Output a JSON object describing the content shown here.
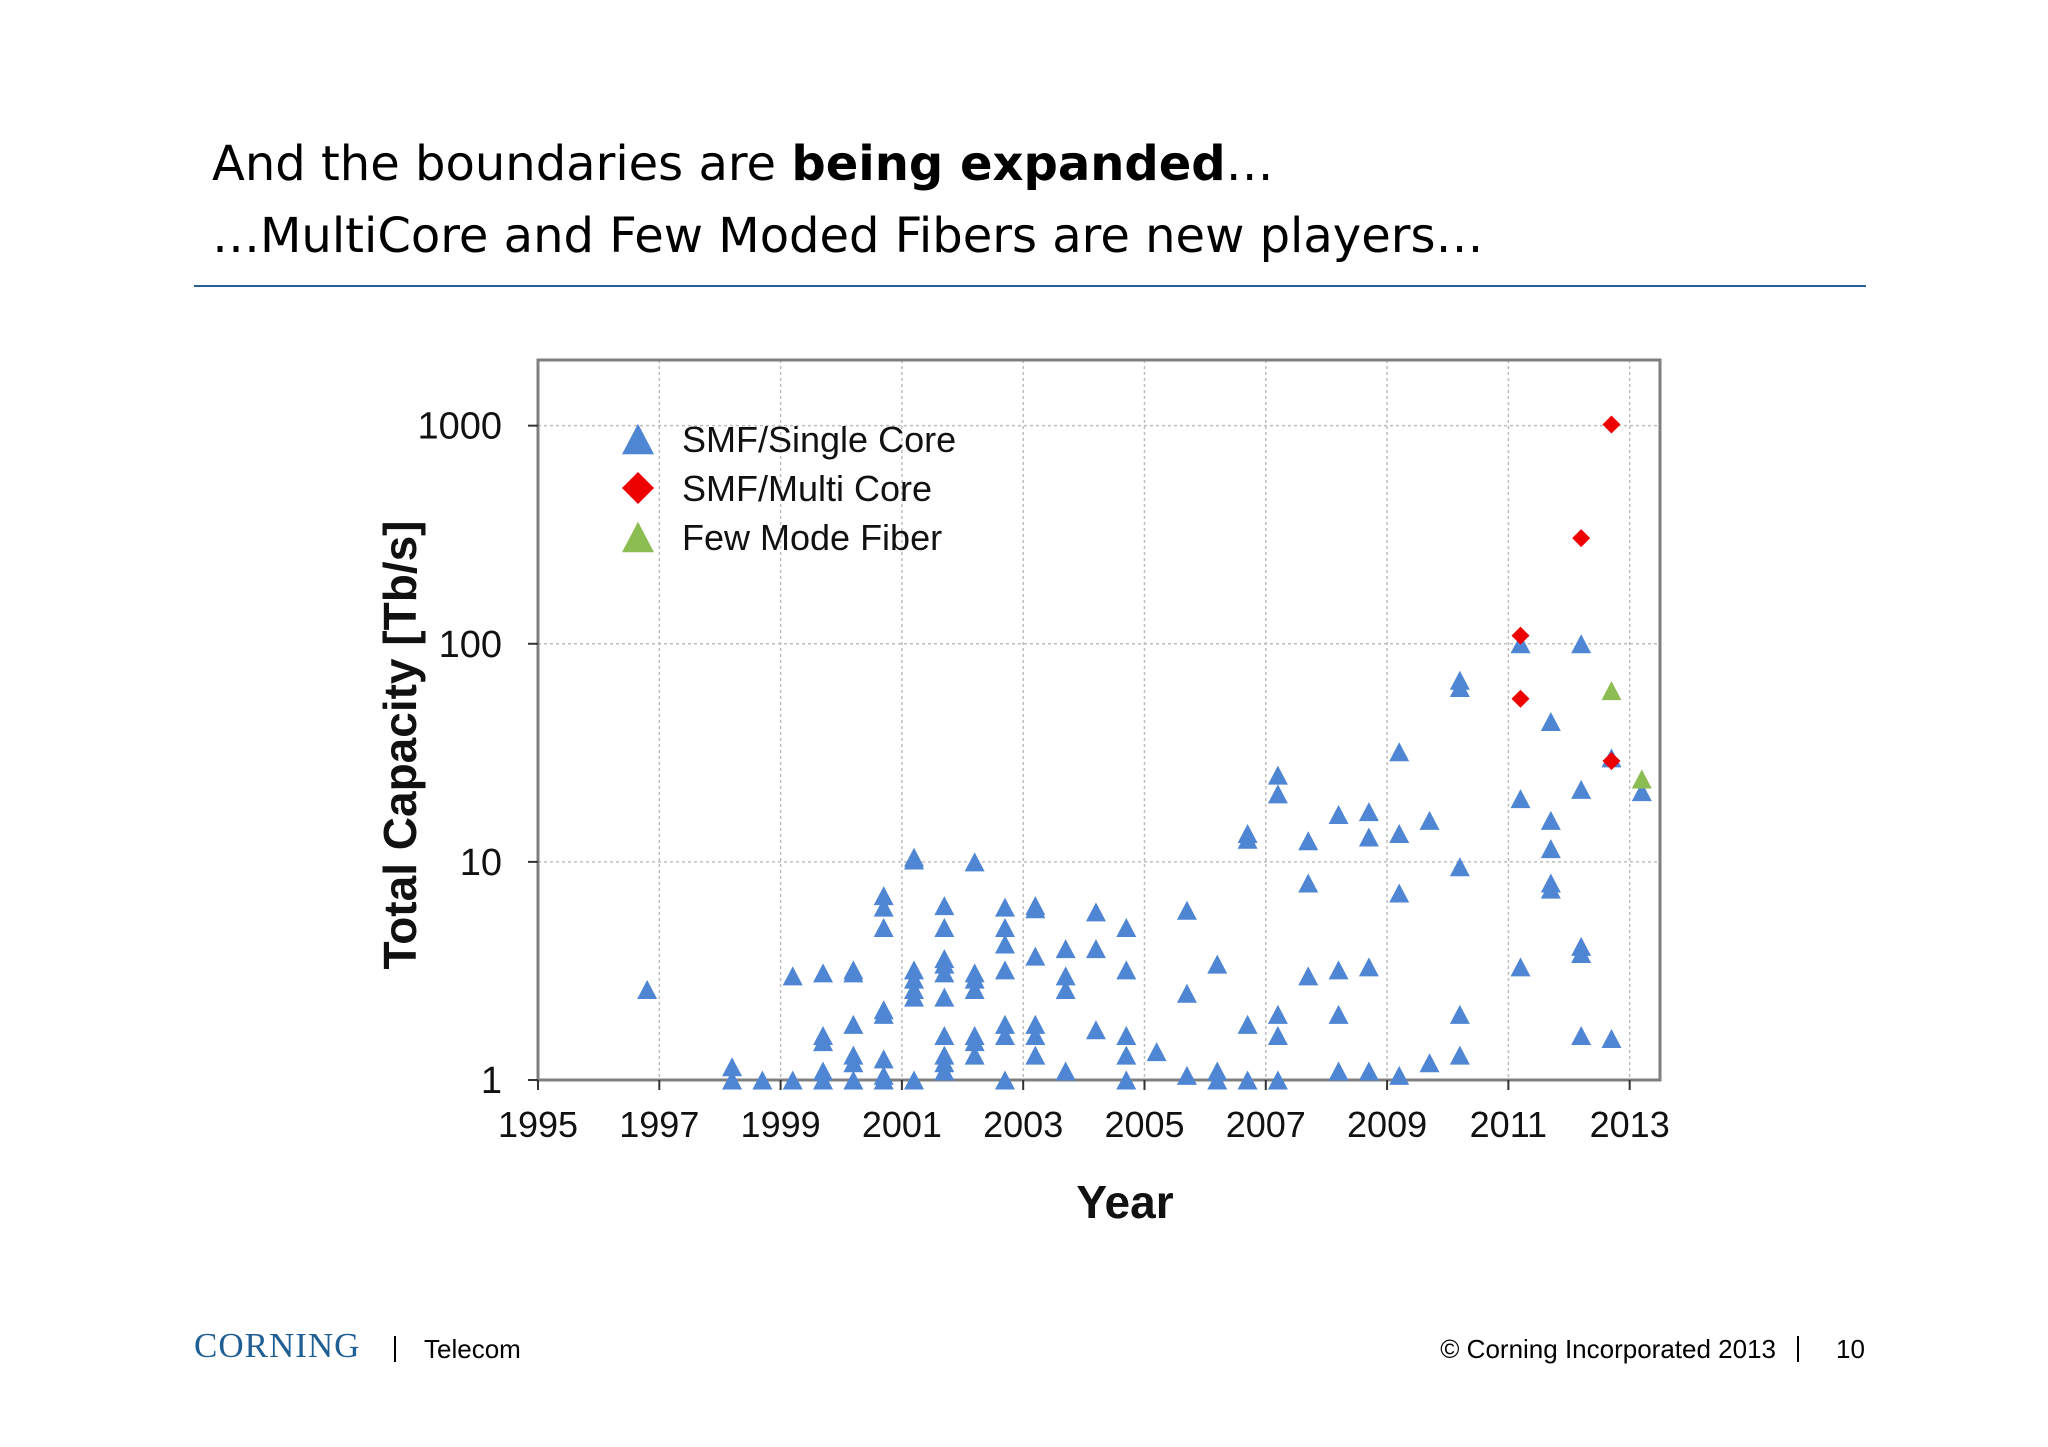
{
  "slide": {
    "title_line1_prefix": "And the boundaries are ",
    "title_line1_bold": "being expanded",
    "title_line1_suffix": "…",
    "title_line2": "…MultiCore and Few Moded Fibers are new players…",
    "rule_color": "#2a5f95"
  },
  "footer": {
    "logo": "CORNING",
    "unit": "Telecom",
    "copyright": "© Corning Incorporated 2013",
    "page_number": "10"
  },
  "chart_data": {
    "type": "scatter",
    "title": "",
    "xlabel": "Year",
    "ylabel": "Total Capacity [Tb/s]",
    "xlim": [
      1995,
      2013.5
    ],
    "ylim": [
      1,
      2000
    ],
    "yscale": "log",
    "x_ticks": [
      "1995",
      "1997",
      "1999",
      "2001",
      "2003",
      "2005",
      "2007",
      "2009",
      "2011",
      "2013"
    ],
    "y_ticks": [
      "1",
      "10",
      "100",
      "1000"
    ],
    "grid": true,
    "legend_position": "top-left",
    "series": [
      {
        "name": "SMF/Single Core",
        "marker": "triangle",
        "color": "#4f86d4",
        "points": [
          [
            1996.8,
            2.6
          ],
          [
            1998.2,
            1.15
          ],
          [
            1998.2,
            1.0
          ],
          [
            1998.7,
            1.0
          ],
          [
            1999.2,
            3.0
          ],
          [
            1999.2,
            1.0
          ],
          [
            1999.7,
            3.1
          ],
          [
            1999.7,
            1.6
          ],
          [
            1999.7,
            1.5
          ],
          [
            1999.7,
            1.1
          ],
          [
            1999.7,
            1.0
          ],
          [
            2000.2,
            3.2
          ],
          [
            2000.2,
            3.1
          ],
          [
            2000.2,
            1.8
          ],
          [
            2000.2,
            1.3
          ],
          [
            2000.2,
            1.2
          ],
          [
            2000.2,
            1.0
          ],
          [
            2000.7,
            7.0
          ],
          [
            2000.7,
            6.2
          ],
          [
            2000.7,
            5.0
          ],
          [
            2000.7,
            2.1
          ],
          [
            2000.7,
            2.0
          ],
          [
            2000.7,
            1.25
          ],
          [
            2000.7,
            1.05
          ],
          [
            2000.7,
            1.0
          ],
          [
            2001.2,
            10.5
          ],
          [
            2001.2,
            10.2
          ],
          [
            2001.2,
            3.2
          ],
          [
            2001.2,
            2.9
          ],
          [
            2001.2,
            2.6
          ],
          [
            2001.2,
            2.4
          ],
          [
            2001.2,
            1.0
          ],
          [
            2001.7,
            6.3
          ],
          [
            2001.7,
            5.0
          ],
          [
            2001.7,
            3.6
          ],
          [
            2001.7,
            3.4
          ],
          [
            2001.7,
            3.1
          ],
          [
            2001.7,
            2.4
          ],
          [
            2001.7,
            1.6
          ],
          [
            2001.7,
            1.3
          ],
          [
            2001.7,
            1.2
          ],
          [
            2001.7,
            1.1
          ],
          [
            2002.2,
            10.0
          ],
          [
            2002.2,
            3.1
          ],
          [
            2002.2,
            2.9
          ],
          [
            2002.2,
            2.6
          ],
          [
            2002.2,
            1.6
          ],
          [
            2002.2,
            1.5
          ],
          [
            2002.2,
            1.3
          ],
          [
            2002.7,
            6.2
          ],
          [
            2002.7,
            5.0
          ],
          [
            2002.7,
            4.2
          ],
          [
            2002.7,
            3.2
          ],
          [
            2002.7,
            1.8
          ],
          [
            2002.7,
            1.6
          ],
          [
            2002.7,
            1.0
          ],
          [
            2003.2,
            6.3
          ],
          [
            2003.2,
            6.1
          ],
          [
            2003.2,
            3.7
          ],
          [
            2003.2,
            1.8
          ],
          [
            2003.2,
            1.6
          ],
          [
            2003.2,
            1.3
          ],
          [
            2003.7,
            4.0
          ],
          [
            2003.7,
            3.0
          ],
          [
            2003.7,
            2.6
          ],
          [
            2003.7,
            1.1
          ],
          [
            2004.2,
            5.9
          ],
          [
            2004.2,
            4.0
          ],
          [
            2004.2,
            1.7
          ],
          [
            2004.7,
            5.0
          ],
          [
            2004.7,
            3.2
          ],
          [
            2004.7,
            1.6
          ],
          [
            2004.7,
            1.3
          ],
          [
            2004.7,
            1.0
          ],
          [
            2005.2,
            1.35
          ],
          [
            2005.7,
            6.0
          ],
          [
            2005.7,
            2.5
          ],
          [
            2005.7,
            1.05
          ],
          [
            2006.2,
            3.4
          ],
          [
            2006.2,
            1.1
          ],
          [
            2006.2,
            1.0
          ],
          [
            2006.7,
            13.5
          ],
          [
            2006.7,
            12.7
          ],
          [
            2006.7,
            1.8
          ],
          [
            2006.7,
            1.0
          ],
          [
            2007.2,
            25.0
          ],
          [
            2007.2,
            20.5
          ],
          [
            2007.2,
            2.0
          ],
          [
            2007.2,
            1.6
          ],
          [
            2007.2,
            1.0
          ],
          [
            2007.7,
            12.5
          ],
          [
            2007.7,
            8.0
          ],
          [
            2007.7,
            3.0
          ],
          [
            2008.2,
            16.5
          ],
          [
            2008.2,
            3.2
          ],
          [
            2008.2,
            2.0
          ],
          [
            2008.2,
            1.1
          ],
          [
            2008.7,
            17.0
          ],
          [
            2008.7,
            13.0
          ],
          [
            2008.7,
            3.3
          ],
          [
            2008.7,
            1.1
          ],
          [
            2009.2,
            32.0
          ],
          [
            2009.2,
            13.5
          ],
          [
            2009.2,
            7.2
          ],
          [
            2009.2,
            1.05
          ],
          [
            2009.7,
            15.5
          ],
          [
            2009.7,
            1.2
          ],
          [
            2010.2,
            68.0
          ],
          [
            2010.2,
            63.0
          ],
          [
            2010.2,
            9.5
          ],
          [
            2010.2,
            2.0
          ],
          [
            2010.2,
            1.3
          ],
          [
            2011.2,
            100.0
          ],
          [
            2011.2,
            19.5
          ],
          [
            2011.2,
            3.3
          ],
          [
            2011.7,
            44.0
          ],
          [
            2011.7,
            15.5
          ],
          [
            2011.7,
            11.5
          ],
          [
            2011.7,
            8.0
          ],
          [
            2011.7,
            7.5
          ],
          [
            2012.2,
            100.0
          ],
          [
            2012.2,
            21.5
          ],
          [
            2012.2,
            4.1
          ],
          [
            2012.2,
            3.8
          ],
          [
            2012.2,
            1.6
          ],
          [
            2012.7,
            30.0
          ],
          [
            2012.7,
            1.55
          ],
          [
            2013.2,
            21.0
          ]
        ]
      },
      {
        "name": "SMF/Multi Core",
        "marker": "diamond",
        "color": "#ee0000",
        "points": [
          [
            2011.2,
            109.0
          ],
          [
            2011.2,
            56.0
          ],
          [
            2012.2,
            305.0
          ],
          [
            2012.7,
            1012.0
          ],
          [
            2012.7,
            29.0
          ]
        ]
      },
      {
        "name": "Few Mode Fiber",
        "marker": "triangle",
        "color": "#8cbd52",
        "points": [
          [
            2012.7,
            61.0
          ],
          [
            2013.2,
            24.0
          ]
        ]
      }
    ]
  }
}
